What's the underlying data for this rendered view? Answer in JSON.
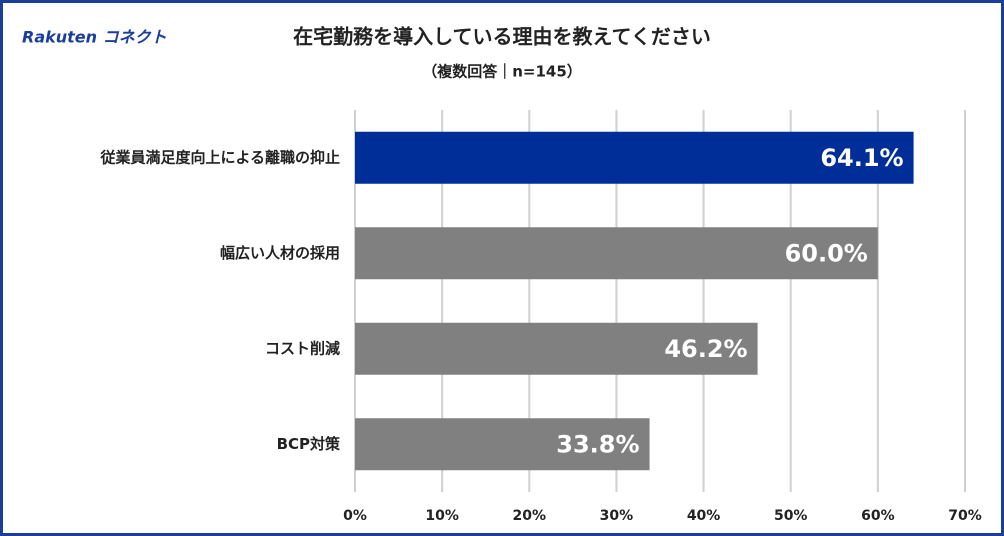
{
  "logo": "Rakuten コネクト",
  "chart_data": {
    "type": "hbar",
    "title": "在宅勤務を導入している理由を教えてください",
    "subtitle": "（複数回答｜n=145）",
    "categories": [
      "従業員満足度向上による離職の抑止",
      "幅広い人材の採用",
      "コスト削減",
      "BCP対策"
    ],
    "values": [
      64.1,
      60.0,
      46.2,
      33.8
    ],
    "value_labels": [
      "64.1%",
      "60.0%",
      "46.2%",
      "33.8%"
    ],
    "colors": [
      "#002e99",
      "#808080",
      "#808080",
      "#808080"
    ],
    "xlim": [
      0,
      70
    ],
    "xticks": [
      {
        "value": 0,
        "label": "0%"
      },
      {
        "value": 10,
        "label": "10%"
      },
      {
        "value": 20,
        "label": "20%"
      },
      {
        "value": 30,
        "label": "30%"
      },
      {
        "value": 40,
        "label": "40%"
      },
      {
        "value": 50,
        "label": "50%"
      },
      {
        "value": 60,
        "label": "60%"
      },
      {
        "value": 70,
        "label": "70%"
      }
    ],
    "grid": true
  }
}
